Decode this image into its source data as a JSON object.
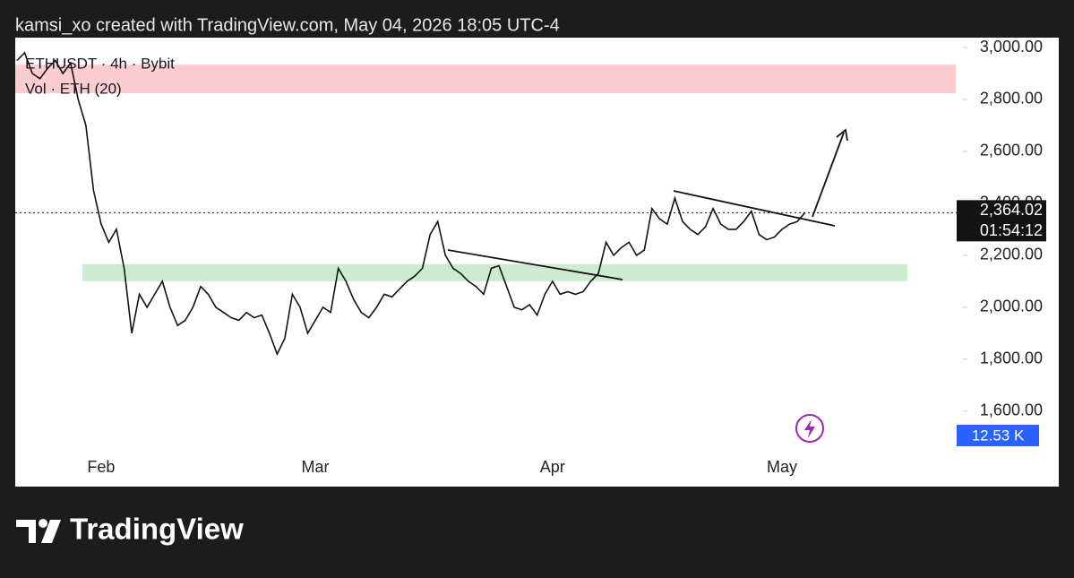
{
  "header": {
    "credit": "kamsi_xo created with TradingView.com, May 04, 2026 18:05 UTC-4"
  },
  "footer": {
    "brand": "TradingView"
  },
  "chart_data": {
    "type": "line",
    "series": [
      {
        "name": "ETHUSDT · 4h · Bybit",
        "color": "#111111",
        "values": [
          2950,
          2980,
          2900,
          2880,
          2920,
          2950,
          2900,
          2940,
          2800,
          2700,
          2450,
          2320,
          2250,
          2300,
          2150,
          1900,
          2050,
          2000,
          2050,
          2100,
          2000,
          1930,
          1950,
          2000,
          2080,
          2050,
          2000,
          1980,
          1960,
          1950,
          1980,
          1960,
          1970,
          1900,
          1820,
          1880,
          2050,
          2000,
          1900,
          1950,
          2000,
          1980,
          2150,
          2100,
          2030,
          1980,
          1960,
          2000,
          2050,
          2040,
          2070,
          2100,
          2120,
          2150,
          2280,
          2330,
          2200,
          2150,
          2130,
          2100,
          2080,
          2050,
          2150,
          2160,
          2080,
          2000,
          1990,
          2010,
          1970,
          2050,
          2100,
          2050,
          2060,
          2050,
          2060,
          2100,
          2130,
          2250,
          2200,
          2230,
          2250,
          2200,
          2220,
          2380,
          2340,
          2320,
          2420,
          2330,
          2300,
          2280,
          2310,
          2380,
          2320,
          2300,
          2300,
          2330,
          2370,
          2280,
          2260,
          2270,
          2300,
          2320,
          2330,
          2364.02
        ]
      }
    ],
    "categories": [
      null,
      null,
      null,
      null,
      null,
      null,
      null,
      null,
      null,
      null,
      null,
      "Feb",
      null,
      null,
      null,
      null,
      null,
      null,
      null,
      null,
      null,
      null,
      null,
      null,
      null,
      null,
      null,
      null,
      null,
      null,
      null,
      null,
      null,
      null,
      null,
      null,
      null,
      null,
      null,
      "Mar",
      null,
      null,
      null,
      null,
      null,
      null,
      null,
      null,
      null,
      null,
      null,
      null,
      null,
      null,
      null,
      null,
      null,
      null,
      null,
      null,
      null,
      null,
      null,
      null,
      null,
      null,
      null,
      null,
      null,
      null,
      "Apr",
      null,
      null,
      null,
      null,
      null,
      null,
      null,
      null,
      null,
      null,
      null,
      null,
      null,
      null,
      null,
      null,
      null,
      null,
      null,
      null,
      null,
      null,
      null,
      null,
      null,
      null,
      null,
      null,
      null,
      "May",
      null,
      null,
      null
    ],
    "volume_label": "Vol · ETH (20)",
    "volume_value": "12.53 K",
    "ylim": [
      1458,
      3038
    ],
    "yticks": [
      {
        "value": 1600,
        "label": "1,600.00"
      },
      {
        "value": 1800,
        "label": "1,800.00"
      },
      {
        "value": 2000,
        "label": "2,000.00"
      },
      {
        "value": 2200,
        "label": "2,200.00"
      },
      {
        "value": 2400,
        "label": "2,400.00"
      },
      {
        "value": 2600,
        "label": "2,600.00"
      },
      {
        "value": 2800,
        "label": "2,800.00"
      },
      {
        "value": 3000,
        "label": "3,000.00"
      }
    ],
    "last_price": {
      "value": 2364.02,
      "label": "2,364.02"
    },
    "countdown": "01:54:12",
    "zones": [
      {
        "from": 2824,
        "to": 2934,
        "color": "#fbcdd0"
      },
      {
        "from": 2100,
        "to": 2166,
        "color": "#cdeccf"
      }
    ]
  }
}
